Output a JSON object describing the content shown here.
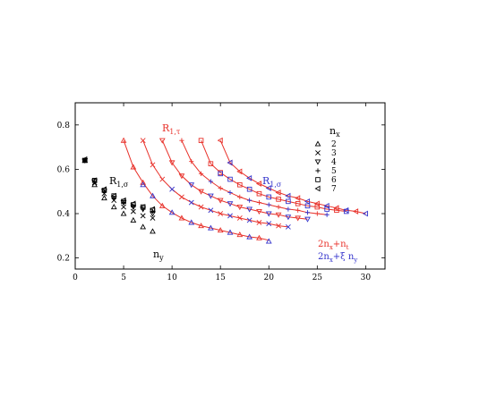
{
  "chart_data": {
    "type": "scatter",
    "title": "",
    "xlabel": "",
    "ylabel": "",
    "xlim": [
      0,
      32
    ],
    "ylim": [
      0.15,
      0.9
    ],
    "x_ticks": [
      0,
      5,
      10,
      15,
      20,
      25,
      30
    ],
    "y_ticks": [
      0.2,
      0.4,
      0.6,
      0.8
    ],
    "grid": false,
    "legend": {
      "title": "n",
      "title_sub": "x",
      "entries": [
        "2",
        "3",
        "4",
        "5",
        "6",
        "7"
      ],
      "placement": "upper-right"
    },
    "annotations": {
      "r1tau": {
        "base": "R",
        "sub": "1,τ",
        "color": "#e8312a"
      },
      "r1sigma_black": {
        "base": "R",
        "sub": "1,σ",
        "color": "#000000"
      },
      "r1sigma_blue": {
        "base": "R",
        "sub": "1,σ",
        "color": "#3333cc"
      },
      "ny": {
        "base": "n",
        "sub": "y",
        "color": "#000000"
      },
      "fit_red": {
        "a": "2n",
        "a_sub": "x",
        "b": "+n",
        "b_sub": "t",
        "color": "#e8312a"
      },
      "fit_blue": {
        "a": "2n",
        "a_sub": "x",
        "b": "+ξ n",
        "b_sub": "y",
        "color": "#3333cc"
      }
    },
    "colors": {
      "tau": "#e8312a",
      "sigma": "#3333cc",
      "black": "#000000"
    },
    "black_points": [
      {
        "series": "2",
        "x": 1,
        "y": 0.64
      },
      {
        "series": "2",
        "x": 2,
        "y": 0.53
      },
      {
        "series": "2",
        "x": 3,
        "y": 0.47
      },
      {
        "series": "2",
        "x": 4,
        "y": 0.43
      },
      {
        "series": "2",
        "x": 5,
        "y": 0.4
      },
      {
        "series": "2",
        "x": 6,
        "y": 0.37
      },
      {
        "series": "2",
        "x": 7,
        "y": 0.34
      },
      {
        "series": "2",
        "x": 8,
        "y": 0.32
      },
      {
        "series": "3",
        "x": 1,
        "y": 0.64
      },
      {
        "series": "3",
        "x": 2,
        "y": 0.54
      },
      {
        "series": "3",
        "x": 3,
        "y": 0.49
      },
      {
        "series": "3",
        "x": 4,
        "y": 0.46
      },
      {
        "series": "3",
        "x": 5,
        "y": 0.43
      },
      {
        "series": "3",
        "x": 6,
        "y": 0.41
      },
      {
        "series": "3",
        "x": 7,
        "y": 0.39
      },
      {
        "series": "3",
        "x": 8,
        "y": 0.38
      },
      {
        "series": "4",
        "x": 1,
        "y": 0.64
      },
      {
        "series": "4",
        "x": 2,
        "y": 0.545
      },
      {
        "series": "4",
        "x": 3,
        "y": 0.5
      },
      {
        "series": "4",
        "x": 4,
        "y": 0.47
      },
      {
        "series": "4",
        "x": 5,
        "y": 0.45
      },
      {
        "series": "4",
        "x": 6,
        "y": 0.43
      },
      {
        "series": "4",
        "x": 7,
        "y": 0.42
      },
      {
        "series": "4",
        "x": 8,
        "y": 0.4
      },
      {
        "series": "5",
        "x": 1,
        "y": 0.64
      },
      {
        "series": "5",
        "x": 2,
        "y": 0.545
      },
      {
        "series": "5",
        "x": 3,
        "y": 0.5
      },
      {
        "series": "5",
        "x": 4,
        "y": 0.47
      },
      {
        "series": "5",
        "x": 5,
        "y": 0.45
      },
      {
        "series": "5",
        "x": 6,
        "y": 0.435
      },
      {
        "series": "5",
        "x": 7,
        "y": 0.42
      },
      {
        "series": "5",
        "x": 8,
        "y": 0.41
      },
      {
        "series": "6",
        "x": 1,
        "y": 0.64
      },
      {
        "series": "6",
        "x": 2,
        "y": 0.55
      },
      {
        "series": "6",
        "x": 3,
        "y": 0.505
      },
      {
        "series": "6",
        "x": 4,
        "y": 0.48
      },
      {
        "series": "6",
        "x": 5,
        "y": 0.455
      },
      {
        "series": "6",
        "x": 6,
        "y": 0.44
      },
      {
        "series": "6",
        "x": 7,
        "y": 0.43
      },
      {
        "series": "6",
        "x": 8,
        "y": 0.415
      },
      {
        "series": "7",
        "x": 1,
        "y": 0.645
      },
      {
        "series": "7",
        "x": 2,
        "y": 0.55
      },
      {
        "series": "7",
        "x": 3,
        "y": 0.51
      },
      {
        "series": "7",
        "x": 4,
        "y": 0.48
      },
      {
        "series": "7",
        "x": 5,
        "y": 0.46
      },
      {
        "series": "7",
        "x": 6,
        "y": 0.445
      },
      {
        "series": "7",
        "x": 7,
        "y": 0.43
      },
      {
        "series": "7",
        "x": 8,
        "y": 0.42
      }
    ],
    "series": [
      {
        "nx": "2",
        "fit_points": [
          [
            5,
            0.73
          ],
          [
            6,
            0.61
          ],
          [
            7,
            0.54
          ],
          [
            8,
            0.48
          ],
          [
            9,
            0.435
          ],
          [
            10,
            0.405
          ],
          [
            11,
            0.38
          ],
          [
            12,
            0.36
          ],
          [
            13,
            0.345
          ],
          [
            14,
            0.335
          ],
          [
            15,
            0.325
          ],
          [
            16,
            0.315
          ],
          [
            17,
            0.305
          ],
          [
            18,
            0.295
          ],
          [
            19,
            0.29
          ],
          [
            20,
            0.28
          ]
        ],
        "tau_x": [
          5,
          6,
          7,
          9,
          11,
          13,
          15,
          17,
          19
        ],
        "tau_y": [
          0.73,
          0.61,
          0.54,
          0.435,
          0.38,
          0.345,
          0.325,
          0.305,
          0.29
        ],
        "sigma_x": [
          7,
          8,
          10,
          12,
          14,
          16,
          18,
          20
        ],
        "sigma_y": [
          0.53,
          0.48,
          0.405,
          0.36,
          0.335,
          0.315,
          0.295,
          0.275
        ]
      },
      {
        "nx": "3",
        "fit_points": [
          [
            7,
            0.73
          ],
          [
            8,
            0.62
          ],
          [
            9,
            0.555
          ],
          [
            10,
            0.51
          ],
          [
            11,
            0.475
          ],
          [
            12,
            0.45
          ],
          [
            13,
            0.43
          ],
          [
            14,
            0.415
          ],
          [
            15,
            0.4
          ],
          [
            16,
            0.39
          ],
          [
            17,
            0.38
          ],
          [
            18,
            0.37
          ],
          [
            19,
            0.36
          ],
          [
            20,
            0.355
          ],
          [
            21,
            0.345
          ],
          [
            22,
            0.34
          ]
        ],
        "tau_x": [
          7,
          8,
          9,
          11,
          13,
          15,
          17,
          19,
          21
        ],
        "tau_y": [
          0.73,
          0.62,
          0.555,
          0.475,
          0.43,
          0.4,
          0.38,
          0.36,
          0.345
        ],
        "sigma_x": [
          10,
          12,
          14,
          16,
          18,
          20,
          22
        ],
        "sigma_y": [
          0.51,
          0.45,
          0.415,
          0.39,
          0.37,
          0.355,
          0.34
        ]
      },
      {
        "nx": "4",
        "fit_points": [
          [
            9,
            0.73
          ],
          [
            10,
            0.63
          ],
          [
            11,
            0.57
          ],
          [
            12,
            0.53
          ],
          [
            13,
            0.5
          ],
          [
            14,
            0.48
          ],
          [
            15,
            0.46
          ],
          [
            16,
            0.445
          ],
          [
            17,
            0.43
          ],
          [
            18,
            0.42
          ],
          [
            19,
            0.41
          ],
          [
            20,
            0.4
          ],
          [
            21,
            0.395
          ],
          [
            22,
            0.385
          ],
          [
            23,
            0.38
          ],
          [
            24,
            0.375
          ]
        ],
        "tau_x": [
          9,
          10,
          11,
          13,
          15,
          17,
          19,
          21,
          23
        ],
        "tau_y": [
          0.73,
          0.63,
          0.57,
          0.5,
          0.46,
          0.43,
          0.41,
          0.395,
          0.38
        ],
        "sigma_x": [
          12,
          14,
          16,
          18,
          20,
          22,
          24
        ],
        "sigma_y": [
          0.53,
          0.48,
          0.445,
          0.42,
          0.4,
          0.385,
          0.375
        ]
      },
      {
        "nx": "5",
        "fit_points": [
          [
            11,
            0.73
          ],
          [
            12,
            0.635
          ],
          [
            13,
            0.58
          ],
          [
            14,
            0.545
          ],
          [
            15,
            0.515
          ],
          [
            16,
            0.495
          ],
          [
            17,
            0.475
          ],
          [
            18,
            0.46
          ],
          [
            19,
            0.45
          ],
          [
            20,
            0.44
          ],
          [
            21,
            0.43
          ],
          [
            22,
            0.42
          ],
          [
            23,
            0.415
          ],
          [
            24,
            0.405
          ],
          [
            25,
            0.4
          ],
          [
            26,
            0.395
          ]
        ],
        "tau_x": [
          11,
          12,
          13,
          15,
          17,
          19,
          21,
          23,
          25
        ],
        "tau_y": [
          0.73,
          0.635,
          0.58,
          0.515,
          0.475,
          0.45,
          0.43,
          0.415,
          0.4
        ],
        "sigma_x": [
          14,
          16,
          18,
          20,
          22,
          24,
          26
        ],
        "sigma_y": [
          0.545,
          0.495,
          0.46,
          0.44,
          0.42,
          0.405,
          0.395
        ]
      },
      {
        "nx": "6",
        "fit_points": [
          [
            13,
            0.73
          ],
          [
            14,
            0.625
          ],
          [
            15,
            0.585
          ],
          [
            16,
            0.555
          ],
          [
            17,
            0.53
          ],
          [
            18,
            0.51
          ],
          [
            19,
            0.49
          ],
          [
            20,
            0.475
          ],
          [
            21,
            0.465
          ],
          [
            22,
            0.455
          ],
          [
            23,
            0.445
          ],
          [
            24,
            0.435
          ],
          [
            25,
            0.43
          ],
          [
            26,
            0.42
          ],
          [
            27,
            0.415
          ],
          [
            28,
            0.41
          ]
        ],
        "tau_x": [
          13,
          14,
          15,
          17,
          19,
          21,
          23,
          25,
          27
        ],
        "tau_y": [
          0.73,
          0.625,
          0.585,
          0.53,
          0.49,
          0.465,
          0.445,
          0.43,
          0.415
        ],
        "sigma_x": [
          15,
          16,
          18,
          20,
          22,
          24,
          26,
          28
        ],
        "sigma_y": [
          0.58,
          0.555,
          0.51,
          0.475,
          0.455,
          0.435,
          0.42,
          0.41
        ]
      },
      {
        "nx": "7",
        "fit_points": [
          [
            15,
            0.73
          ],
          [
            16,
            0.63
          ],
          [
            17,
            0.59
          ],
          [
            18,
            0.56
          ],
          [
            19,
            0.535
          ],
          [
            20,
            0.515
          ],
          [
            21,
            0.495
          ],
          [
            22,
            0.48
          ],
          [
            23,
            0.47
          ],
          [
            24,
            0.455
          ],
          [
            25,
            0.445
          ],
          [
            26,
            0.435
          ],
          [
            27,
            0.425
          ],
          [
            28,
            0.415
          ],
          [
            29,
            0.41
          ],
          [
            30,
            0.4
          ]
        ],
        "tau_x": [
          15,
          16,
          17,
          19,
          21,
          23,
          25,
          27,
          29
        ],
        "tau_y": [
          0.73,
          0.63,
          0.59,
          0.535,
          0.495,
          0.47,
          0.445,
          0.425,
          0.41
        ],
        "sigma_x": [
          16,
          18,
          20,
          22,
          24,
          26,
          28,
          30
        ],
        "sigma_y": [
          0.63,
          0.56,
          0.515,
          0.48,
          0.455,
          0.435,
          0.415,
          0.4
        ]
      }
    ]
  }
}
